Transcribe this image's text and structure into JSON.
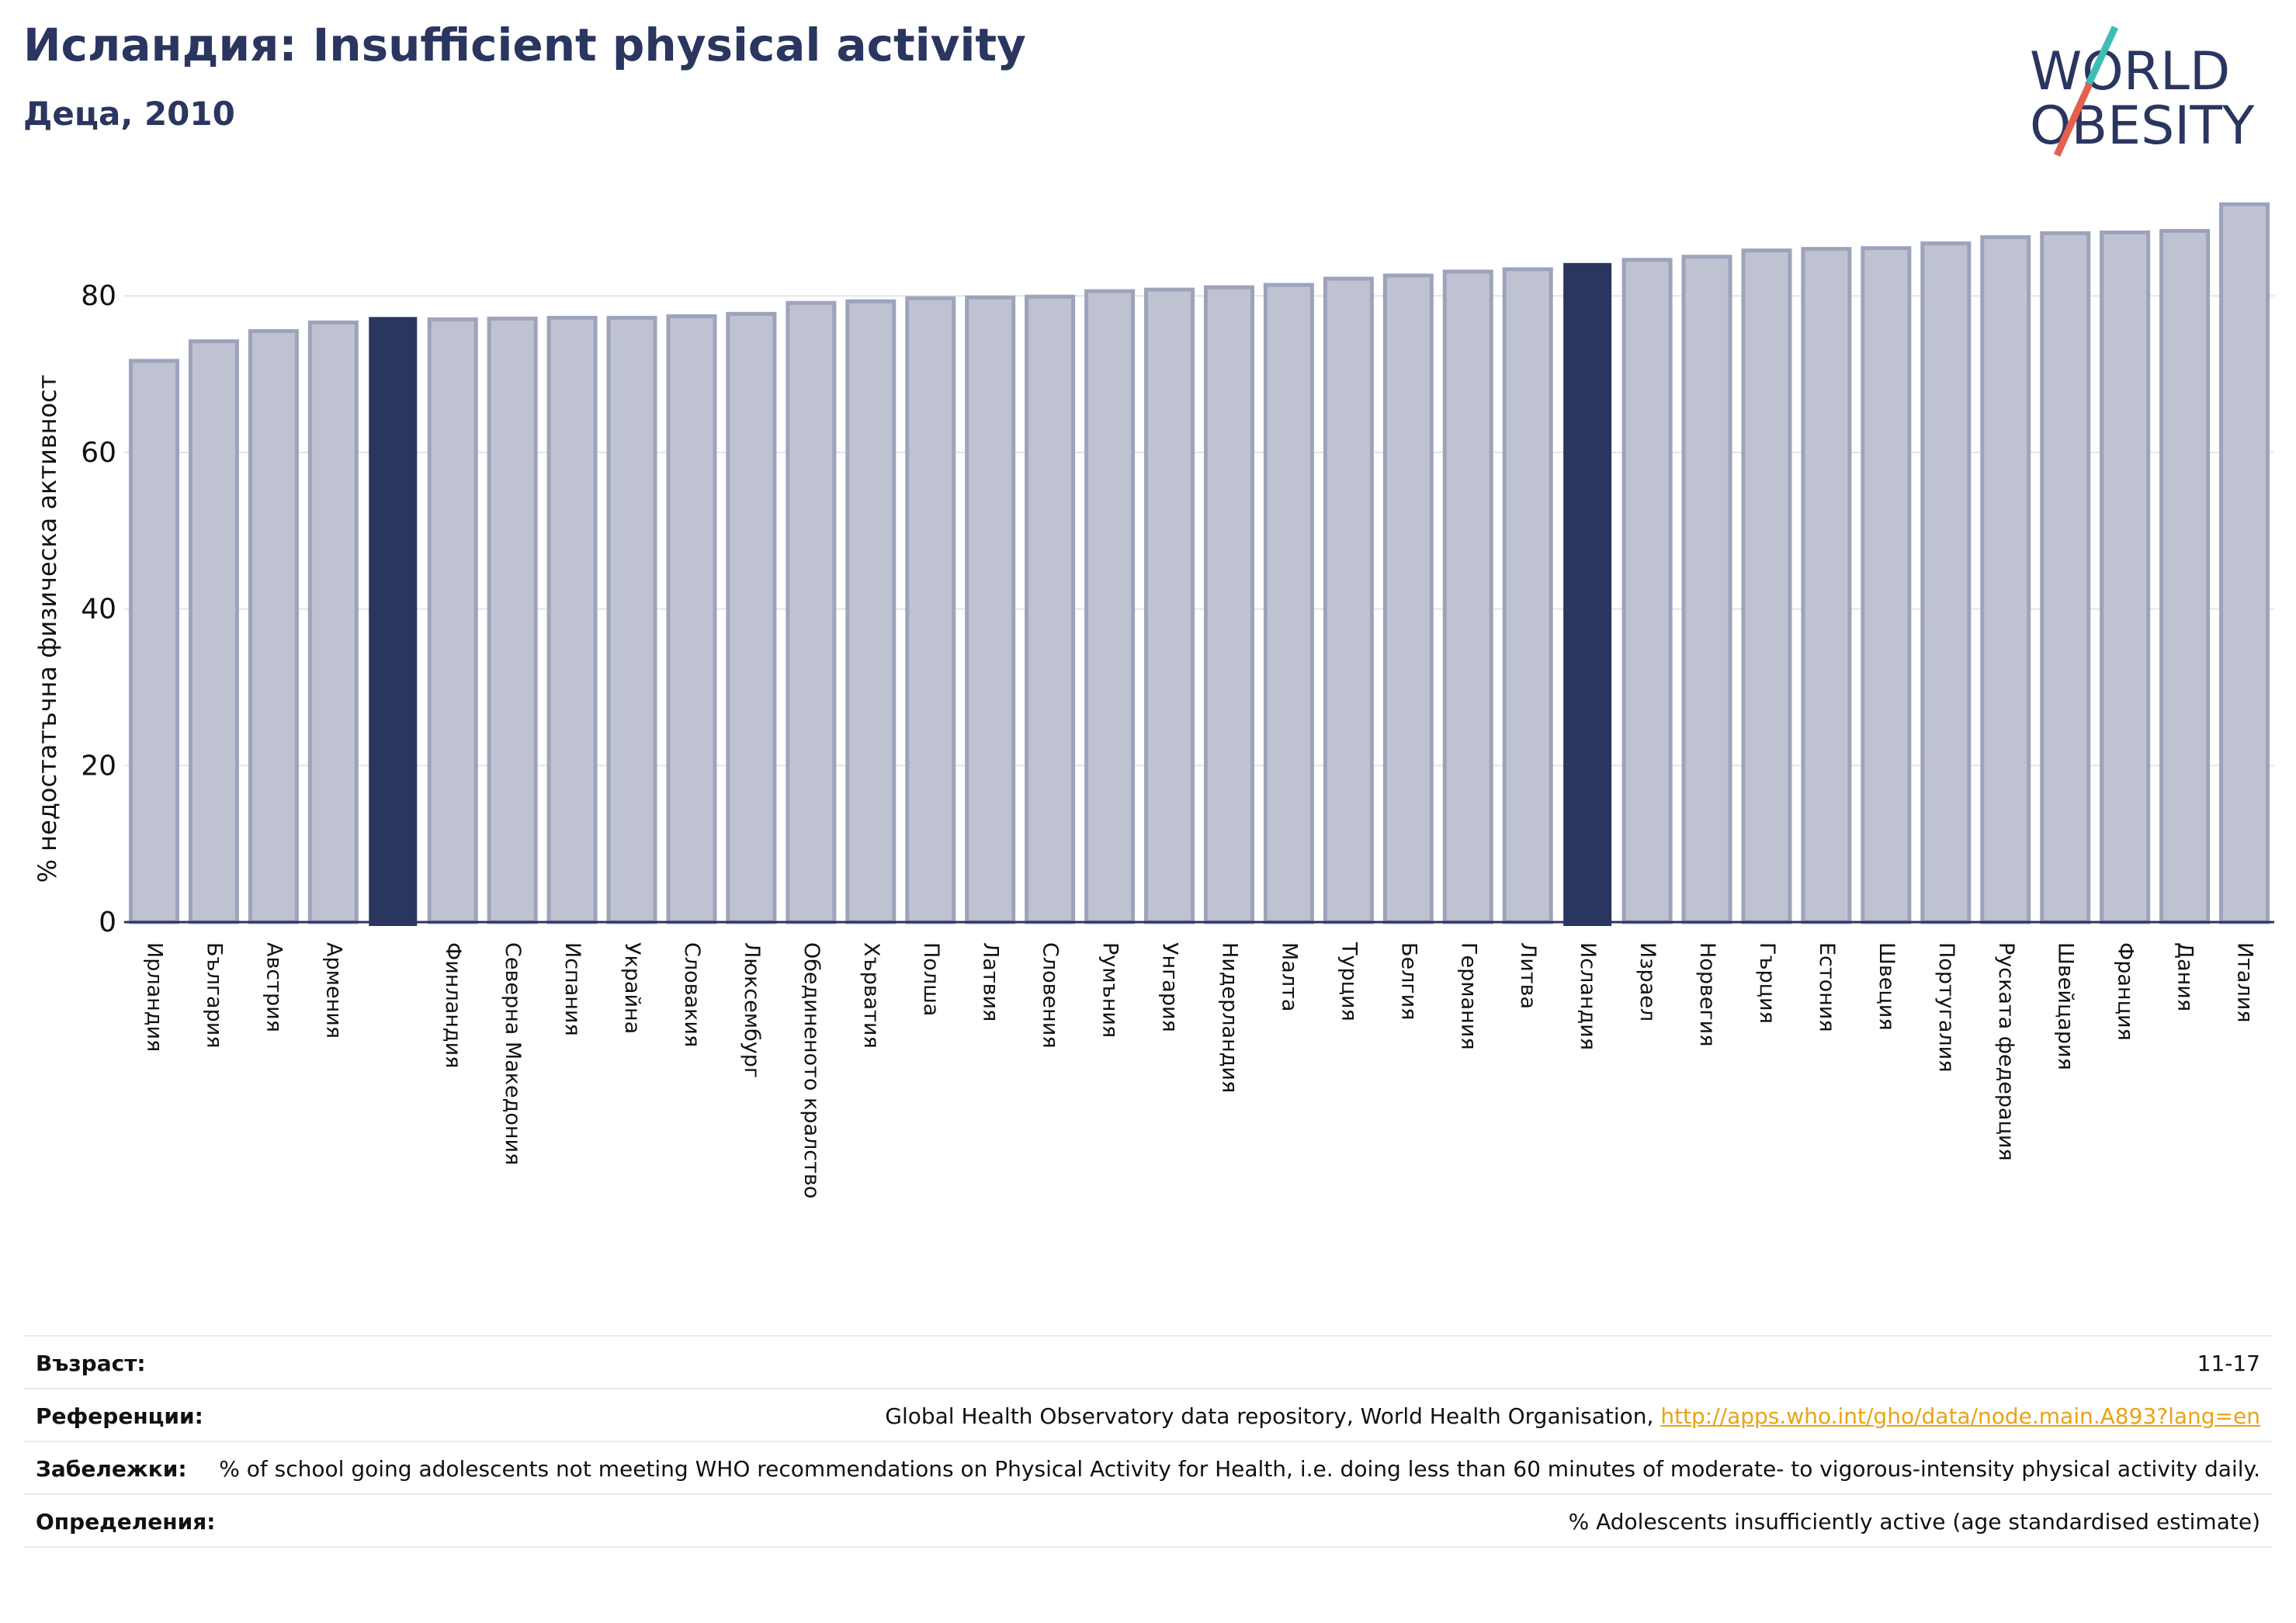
{
  "header": {
    "title": "Исландия: Insufficient physical activity",
    "subtitle": "Деца, 2010"
  },
  "logo": {
    "line1": "WORLD",
    "line2": "OBESITY"
  },
  "colors": {
    "highlight": "#2a3560",
    "bar": "#bfc2d0",
    "bar_edge": "#9ea3bc",
    "accent_teal": "#3dbdb5",
    "accent_red": "#e5604d"
  },
  "chart_data": {
    "type": "bar",
    "title": "Исландия: Insufficient physical activity",
    "subtitle": "Деца, 2010",
    "ylabel": "% недостатъчна физическа активност",
    "xlabel": "",
    "ylim": [
      0,
      94
    ],
    "yticks": [
      0,
      20,
      40,
      60,
      80
    ],
    "grid": true,
    "categories": [
      "Ирландия",
      "България",
      "Австрия",
      "Армения",
      "",
      "Финландия",
      "Северна Македония",
      "Испания",
      "Украйна",
      "Словакия",
      "Люксембург",
      "Обединеното кралство",
      "Хърватия",
      "Полша",
      "Латвия",
      "Словения",
      "Румъния",
      "Унгария",
      "Нидерландия",
      "Малта",
      "Турция",
      "Белгия",
      "Германия",
      "Литва",
      "Исландия",
      "Израел",
      "Норвегия",
      "Гърция",
      "Естония",
      "Швеция",
      "Португалия",
      "Руската федерация",
      "Швейцария",
      "Франция",
      "Дания",
      "Италия"
    ],
    "values": [
      71.7,
      74.2,
      75.5,
      76.6,
      77.2,
      77.0,
      77.1,
      77.2,
      77.2,
      77.4,
      77.7,
      79.1,
      79.3,
      79.7,
      79.8,
      79.9,
      80.6,
      80.8,
      81.1,
      81.4,
      82.2,
      82.6,
      83.1,
      83.4,
      84.1,
      84.6,
      85.0,
      85.8,
      86.0,
      86.1,
      86.7,
      87.5,
      88.0,
      88.1,
      88.3,
      91.7
    ],
    "highlighted": [
      4,
      24
    ]
  },
  "info": [
    {
      "label": "Възраст:",
      "value": "11-17"
    },
    {
      "label": "Референции:",
      "value": "Global Health Observatory data repository, World Health Organisation, ",
      "link": "http://apps.who.int/gho/data/node.main.A893?lang=en"
    },
    {
      "label": "Забележки:",
      "value": "% of school going adolescents not meeting WHO recommendations on Physical Activity for Health, i.e. doing less than 60 minutes of moderate- to vigorous-intensity physical activity daily."
    },
    {
      "label": "Определения:",
      "value": "% Adolescents insufficiently active (age standardised estimate)"
    }
  ]
}
